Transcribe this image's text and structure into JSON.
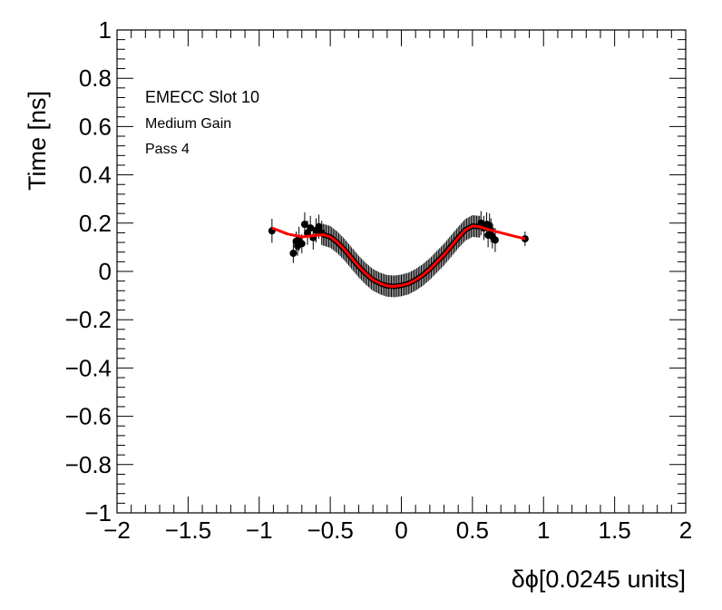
{
  "chart_data": {
    "type": "scatter",
    "xlabel": "δϕ[0.0245 units]",
    "ylabel": "Time [ns]",
    "xlim": [
      -2,
      2
    ],
    "ylim": [
      -1,
      1
    ],
    "x_ticks": [
      -2,
      -1.5,
      -1,
      -0.5,
      0,
      0.5,
      1,
      1.5,
      2
    ],
    "x_tick_labels": [
      "−2",
      "−1.5",
      "−1",
      "−0.5",
      "0",
      "0.5",
      "1",
      "1.5",
      "2"
    ],
    "y_ticks": [
      -1,
      -0.8,
      -0.6,
      -0.4,
      -0.2,
      0,
      0.2,
      0.4,
      0.6,
      0.8,
      1
    ],
    "y_tick_labels": [
      "−1",
      "−0.8",
      "−0.6",
      "−0.4",
      "−0.2",
      "0",
      "0.2",
      "0.4",
      "0.6",
      "0.8",
      "1"
    ],
    "annotations": [
      "EMECC Slot 10",
      "Medium Gain",
      "Pass 4"
    ],
    "grid": false,
    "colors": {
      "points": "#000000",
      "fit": "#ff0000"
    },
    "points": [
      {
        "x": -0.91,
        "y": 0.168,
        "err": 0.05
      },
      {
        "x": -0.76,
        "y": 0.075,
        "err": 0.04
      },
      {
        "x": -0.74,
        "y": 0.125,
        "err": 0.04
      },
      {
        "x": -0.73,
        "y": 0.105,
        "err": 0.04
      },
      {
        "x": -0.72,
        "y": 0.135,
        "err": 0.05
      },
      {
        "x": -0.7,
        "y": 0.115,
        "err": 0.04
      },
      {
        "x": -0.68,
        "y": 0.195,
        "err": 0.05
      },
      {
        "x": -0.66,
        "y": 0.16,
        "err": 0.05
      },
      {
        "x": -0.64,
        "y": 0.18,
        "err": 0.05
      },
      {
        "x": -0.62,
        "y": 0.14,
        "err": 0.05
      },
      {
        "x": -0.6,
        "y": 0.17,
        "err": 0.05
      },
      {
        "x": -0.58,
        "y": 0.185,
        "err": 0.05
      },
      {
        "x": -0.56,
        "y": 0.16,
        "err": 0.05
      },
      {
        "x": 0.56,
        "y": 0.2,
        "err": 0.05
      },
      {
        "x": 0.58,
        "y": 0.18,
        "err": 0.05
      },
      {
        "x": 0.6,
        "y": 0.195,
        "err": 0.05
      },
      {
        "x": 0.61,
        "y": 0.15,
        "err": 0.05
      },
      {
        "x": 0.62,
        "y": 0.19,
        "err": 0.05
      },
      {
        "x": 0.63,
        "y": 0.17,
        "err": 0.05
      },
      {
        "x": 0.64,
        "y": 0.145,
        "err": 0.05
      },
      {
        "x": 0.66,
        "y": 0.13,
        "err": 0.05
      },
      {
        "x": 0.87,
        "y": 0.135,
        "err": 0.03
      }
    ],
    "dense_band": {
      "x_start": -0.55,
      "x_end": 0.55,
      "step": 0.01,
      "err": 0.045
    },
    "fit_curve": {
      "x": [
        -0.91,
        -0.8,
        -0.7,
        -0.6,
        -0.55,
        -0.5,
        -0.45,
        -0.4,
        -0.35,
        -0.3,
        -0.25,
        -0.2,
        -0.15,
        -0.1,
        -0.05,
        0,
        0.05,
        0.1,
        0.15,
        0.2,
        0.25,
        0.3,
        0.35,
        0.4,
        0.45,
        0.5,
        0.55,
        0.6,
        0.7,
        0.8,
        0.87
      ],
      "y": [
        0.18,
        0.155,
        0.143,
        0.15,
        0.152,
        0.143,
        0.12,
        0.09,
        0.055,
        0.02,
        -0.01,
        -0.035,
        -0.05,
        -0.06,
        -0.062,
        -0.058,
        -0.05,
        -0.035,
        -0.015,
        0.01,
        0.04,
        0.07,
        0.105,
        0.14,
        0.172,
        0.188,
        0.185,
        0.175,
        0.16,
        0.145,
        0.135
      ]
    }
  }
}
